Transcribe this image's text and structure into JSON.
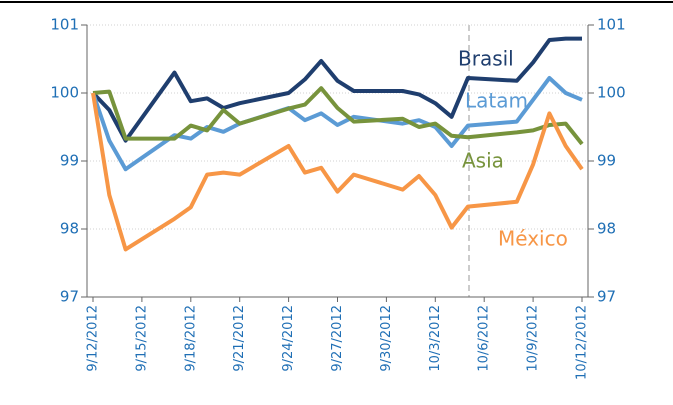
{
  "chart_data": {
    "type": "line",
    "x": [
      "9/12/2012",
      "9/13/2012",
      "9/14/2012",
      "9/17/2012",
      "9/18/2012",
      "9/19/2012",
      "9/20/2012",
      "9/21/2012",
      "9/24/2012",
      "9/25/2012",
      "9/26/2012",
      "9/27/2012",
      "9/28/2012",
      "10/1/2012",
      "10/2/2012",
      "10/3/2012",
      "10/4/2012",
      "10/5/2012",
      "10/8/2012",
      "10/9/2012",
      "10/10/2012",
      "10/11/2012",
      "10/12/2012"
    ],
    "series": [
      {
        "name": "Brasil",
        "color": "#1f3e6e",
        "values": [
          100.0,
          99.75,
          99.3,
          100.3,
          99.88,
          99.92,
          99.78,
          99.85,
          100.0,
          100.2,
          100.47,
          100.18,
          100.03,
          100.03,
          99.98,
          99.85,
          99.65,
          100.22,
          100.18,
          100.45,
          100.78,
          100.8,
          100.8
        ]
      },
      {
        "name": "Latam",
        "color": "#5b9bd5",
        "values": [
          100.0,
          99.3,
          98.88,
          99.38,
          99.33,
          99.5,
          99.43,
          99.55,
          99.78,
          99.6,
          99.7,
          99.53,
          99.65,
          99.55,
          99.6,
          99.5,
          99.22,
          99.52,
          99.58,
          99.9,
          100.22,
          100.0,
          99.9
        ]
      },
      {
        "name": "Asia",
        "color": "#77933c",
        "values": [
          100.0,
          100.02,
          99.33,
          99.33,
          99.52,
          99.45,
          99.75,
          99.55,
          99.77,
          99.83,
          100.07,
          99.78,
          99.58,
          99.62,
          99.5,
          99.55,
          99.37,
          99.35,
          99.42,
          99.45,
          99.53,
          99.55,
          99.25
        ]
      },
      {
        "name": "México",
        "color": "#f79646",
        "values": [
          100.0,
          98.5,
          97.7,
          98.15,
          98.32,
          98.8,
          98.83,
          98.8,
          99.22,
          98.83,
          98.9,
          98.55,
          98.8,
          98.58,
          98.78,
          98.5,
          98.02,
          98.33,
          98.4,
          98.95,
          99.7,
          99.22,
          98.88
        ]
      }
    ],
    "xlim": [
      "9/12/2012",
      "10/12/2012"
    ],
    "xticks": [
      "9/12/2012",
      "9/15/2012",
      "9/18/2012",
      "9/21/2012",
      "9/24/2012",
      "9/27/2012",
      "9/30/2012",
      "10/3/2012",
      "10/6/2012",
      "10/9/2012",
      "10/12/2012"
    ],
    "ylim": [
      97,
      101
    ],
    "yticks": [
      97,
      98,
      99,
      100,
      101
    ],
    "y2lim": [
      97,
      101
    ],
    "y2ticks": [
      97,
      98,
      99,
      100,
      101
    ],
    "grid": true
  }
}
